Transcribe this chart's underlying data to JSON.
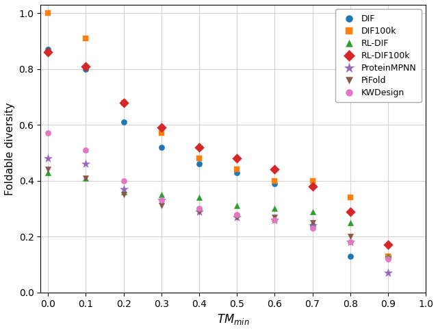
{
  "title": "",
  "xlabel": "$TM_{min}$",
  "ylabel": "Foldable diversity",
  "xlim": [
    -0.02,
    1.0
  ],
  "ylim": [
    0.0,
    1.03
  ],
  "xticks": [
    0.0,
    0.1,
    0.2,
    0.3,
    0.4,
    0.5,
    0.6,
    0.7,
    0.8,
    0.9,
    1.0
  ],
  "yticks": [
    0.0,
    0.2,
    0.4,
    0.6,
    0.8,
    1.0
  ],
  "series": {
    "DIF": {
      "color": "#1f77b4",
      "marker": "o",
      "markersize": 6,
      "x": [
        0.0,
        0.1,
        0.2,
        0.3,
        0.4,
        0.5,
        0.6,
        0.7,
        0.8,
        0.9
      ],
      "y": [
        0.87,
        0.8,
        0.61,
        0.52,
        0.46,
        0.43,
        0.39,
        0.24,
        0.13,
        0.13
      ]
    },
    "DIF100k": {
      "color": "#ff7f0e",
      "marker": "s",
      "markersize": 6,
      "x": [
        0.0,
        0.1,
        0.2,
        0.3,
        0.4,
        0.5,
        0.6,
        0.7,
        0.8,
        0.9
      ],
      "y": [
        1.0,
        0.91,
        0.68,
        0.57,
        0.48,
        0.44,
        0.4,
        0.4,
        0.34,
        0.13
      ]
    },
    "RL-DIF": {
      "color": "#2ca02c",
      "marker": "^",
      "markersize": 6,
      "x": [
        0.0,
        0.1,
        0.2,
        0.3,
        0.4,
        0.5,
        0.6,
        0.7,
        0.8,
        0.9
      ],
      "y": [
        0.43,
        0.41,
        0.36,
        0.35,
        0.34,
        0.31,
        0.3,
        0.29,
        0.25,
        0.13
      ]
    },
    "RL-DIF100k": {
      "color": "#d62728",
      "marker": "D",
      "markersize": 7,
      "x": [
        0.0,
        0.1,
        0.2,
        0.3,
        0.4,
        0.5,
        0.6,
        0.7,
        0.8,
        0.9
      ],
      "y": [
        0.86,
        0.81,
        0.68,
        0.59,
        0.52,
        0.48,
        0.44,
        0.38,
        0.29,
        0.17
      ]
    },
    "ProteinMPNN": {
      "color": "#9467bd",
      "marker": "*",
      "markersize": 9,
      "x": [
        0.0,
        0.1,
        0.2,
        0.3,
        0.4,
        0.5,
        0.6,
        0.7,
        0.8,
        0.9
      ],
      "y": [
        0.48,
        0.46,
        0.37,
        0.33,
        0.29,
        0.27,
        0.26,
        0.24,
        0.18,
        0.07
      ]
    },
    "PiFold": {
      "color": "#8c564b",
      "marker": "v",
      "markersize": 6,
      "x": [
        0.0,
        0.1,
        0.2,
        0.3,
        0.4,
        0.5,
        0.6,
        0.7,
        0.8,
        0.9
      ],
      "y": [
        0.44,
        0.41,
        0.35,
        0.31,
        0.29,
        0.27,
        0.27,
        0.25,
        0.2,
        0.12
      ]
    },
    "KWDesign": {
      "color": "#e377c2",
      "marker": "o",
      "markersize": 6,
      "x": [
        0.0,
        0.1,
        0.2,
        0.3,
        0.4,
        0.5,
        0.6,
        0.7,
        0.8,
        0.9
      ],
      "y": [
        0.57,
        0.51,
        0.4,
        0.33,
        0.3,
        0.28,
        0.26,
        0.23,
        0.18,
        0.12
      ]
    }
  }
}
